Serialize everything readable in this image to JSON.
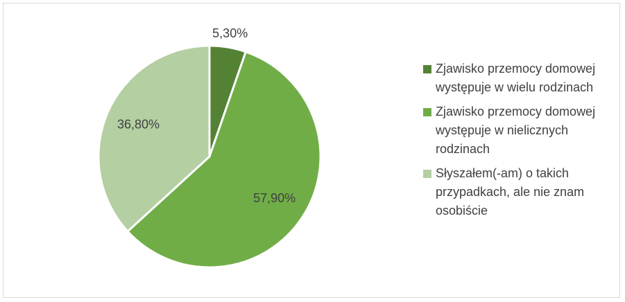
{
  "chart_data": {
    "type": "pie",
    "categories": [
      "Zjawisko przemocy domowej występuje w wielu rodzinach",
      "Zjawisko przemocy domowej występuje w nielicznych rodzinach",
      "Słyszałem(-am) o takich przypadkach, ale nie znam osobiście"
    ],
    "values": [
      5.3,
      57.9,
      36.8
    ],
    "value_labels": [
      "5,30%",
      "57,90%",
      "36,80%"
    ],
    "colors": [
      "#548235",
      "#70ad47",
      "#b4cfa2"
    ],
    "legend": "right"
  }
}
